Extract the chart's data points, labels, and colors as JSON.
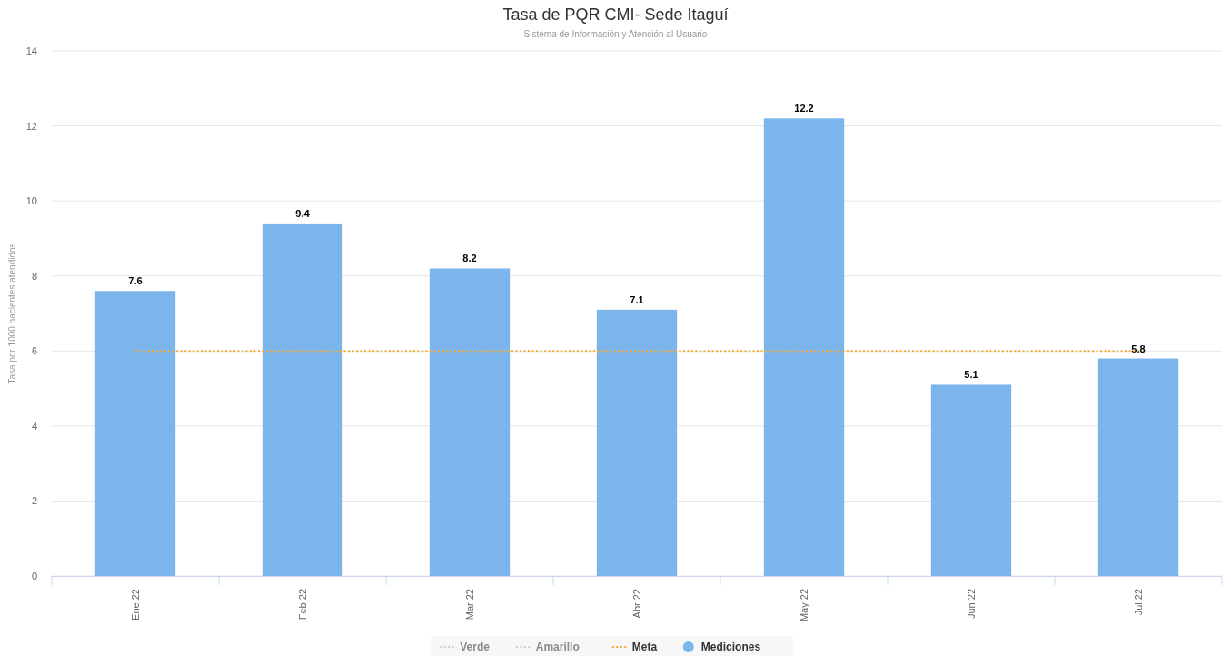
{
  "chart_data": {
    "type": "bar",
    "title": "Tasa de PQR CMI- Sede Itaguí",
    "subtitle": "Sistema de Información y Atención al Usuario",
    "ylabel": "Tasa por 1000 pacientes atendidos",
    "categories": [
      "Ene 22",
      "Feb 22",
      "Mar 22",
      "Abr 22",
      "May 22",
      "Jun 22",
      "Jul 22"
    ],
    "series": [
      {
        "name": "Verde",
        "type": "line",
        "color": "#cccccc",
        "line_style": "dotted",
        "values": [
          null,
          null,
          null,
          null,
          null,
          null,
          null
        ]
      },
      {
        "name": "Amarillo",
        "type": "line",
        "color": "#cccccc",
        "line_style": "dotted",
        "values": [
          null,
          null,
          null,
          null,
          null,
          null,
          null
        ]
      },
      {
        "name": "Meta",
        "type": "line",
        "color": "#f7a935",
        "line_style": "dotted",
        "values": [
          6,
          6,
          6,
          6,
          6,
          6,
          6
        ]
      },
      {
        "name": "Mediciones",
        "color": "#7cb5ec",
        "values": [
          7.6,
          9.4,
          8.2,
          7.1,
          12.2,
          5.1,
          5.8
        ],
        "data_labels": true
      }
    ],
    "ylim": [
      0,
      14
    ],
    "yticks": [
      0,
      2,
      4,
      6,
      8,
      10,
      12,
      14
    ],
    "grid": "y",
    "legend": "bottom",
    "marker": "none"
  }
}
